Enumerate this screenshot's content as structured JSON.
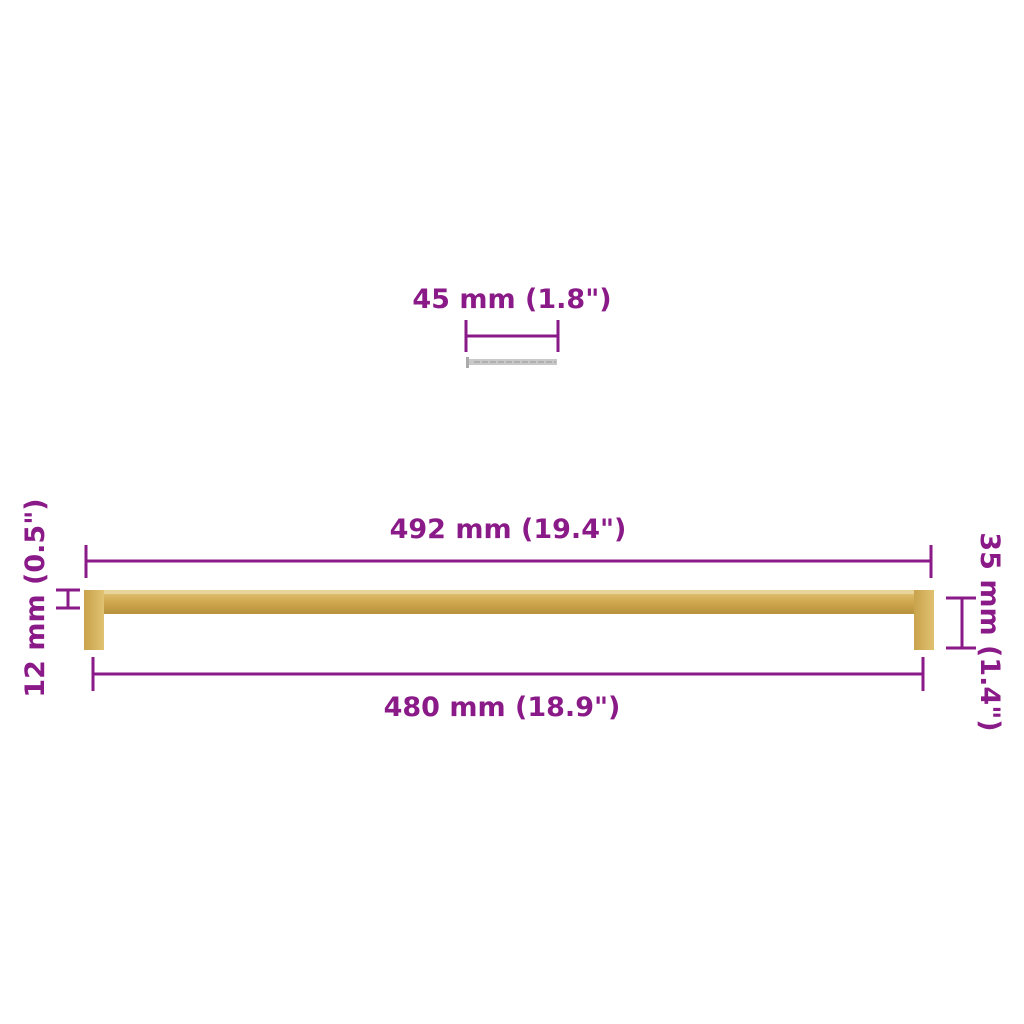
{
  "colors": {
    "dimension": "#8b1a89",
    "handle": "#d4b05a",
    "screw": "#b8b8b8"
  },
  "screw": {
    "length_label": "45 mm (1.8\")"
  },
  "handle": {
    "overall_length_label": "492 mm (19.4\")",
    "hole_spacing_label": "480 mm (18.9\")",
    "bar_thickness_label": "12 mm (0.5\")",
    "height_label": "35 mm (1.4\")"
  }
}
